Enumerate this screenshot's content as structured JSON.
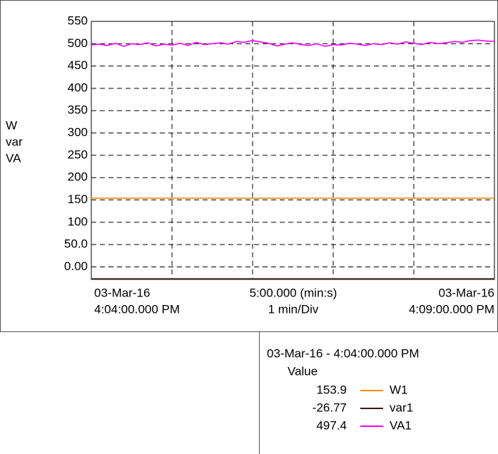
{
  "chart_data": {
    "type": "line",
    "y_label_lines": [
      "W",
      "var",
      "VA"
    ],
    "x_labels": [
      [
        "03-Mar-16",
        "4:04:00.000 PM"
      ],
      [
        "5:00.000 (min:s)",
        "1 min/Div"
      ],
      [
        "03-Mar-16",
        "4:09:00.000 PM"
      ]
    ],
    "xlim": [
      0,
      5
    ],
    "xticks": [
      0,
      1,
      2,
      3,
      4,
      5
    ],
    "ylim": [
      -28,
      550
    ],
    "yticks": [
      {
        "value": 0,
        "label": "0.00"
      },
      {
        "value": 50,
        "label": "50.0"
      },
      100,
      150,
      200,
      250,
      300,
      350,
      400,
      450,
      500,
      550
    ],
    "grid": true,
    "legend_title": "03-Mar-16 - 4:04:00.000 PM",
    "legend_header": "Value",
    "series": [
      {
        "name": "W1",
        "color": "#ff8c00",
        "cursor_value": 153.9,
        "x": [
          0,
          5
        ],
        "values": [
          153.9,
          153.9
        ]
      },
      {
        "name": "var1",
        "color": "#3a1a10",
        "cursor_value": -26.77,
        "x": [
          0,
          5
        ],
        "values": [
          -26.77,
          -26.77
        ]
      },
      {
        "name": "VA1",
        "color": "#ff00ff",
        "cursor_value": 497.4,
        "x": [
          0,
          0.1,
          0.2,
          0.3,
          0.4,
          0.5,
          0.6,
          0.7,
          0.8,
          0.9,
          1,
          1.1,
          1.2,
          1.3,
          1.4,
          1.5,
          1.6,
          1.7,
          1.8,
          1.9,
          2,
          2.1,
          2.2,
          2.3,
          2.4,
          2.5,
          2.6,
          2.7,
          2.8,
          2.9,
          3,
          3.1,
          3.2,
          3.3,
          3.4,
          3.5,
          3.6,
          3.7,
          3.8,
          3.9,
          4,
          4.1,
          4.2,
          4.3,
          4.4,
          4.5,
          4.6,
          4.7,
          4.8,
          4.9,
          5
        ],
        "values": [
          497.4,
          499,
          496,
          501,
          494,
          500,
          498,
          502,
          495,
          499,
          497,
          501,
          496,
          503,
          498,
          500,
          502,
          499,
          505,
          503,
          507,
          504,
          501,
          495,
          499,
          502,
          498,
          496,
          500,
          494,
          498,
          497,
          501,
          499,
          496,
          500,
          498,
          502,
          499,
          504,
          501,
          498,
          503,
          500,
          502,
          505,
          503,
          507,
          508,
          506,
          505
        ]
      }
    ]
  }
}
